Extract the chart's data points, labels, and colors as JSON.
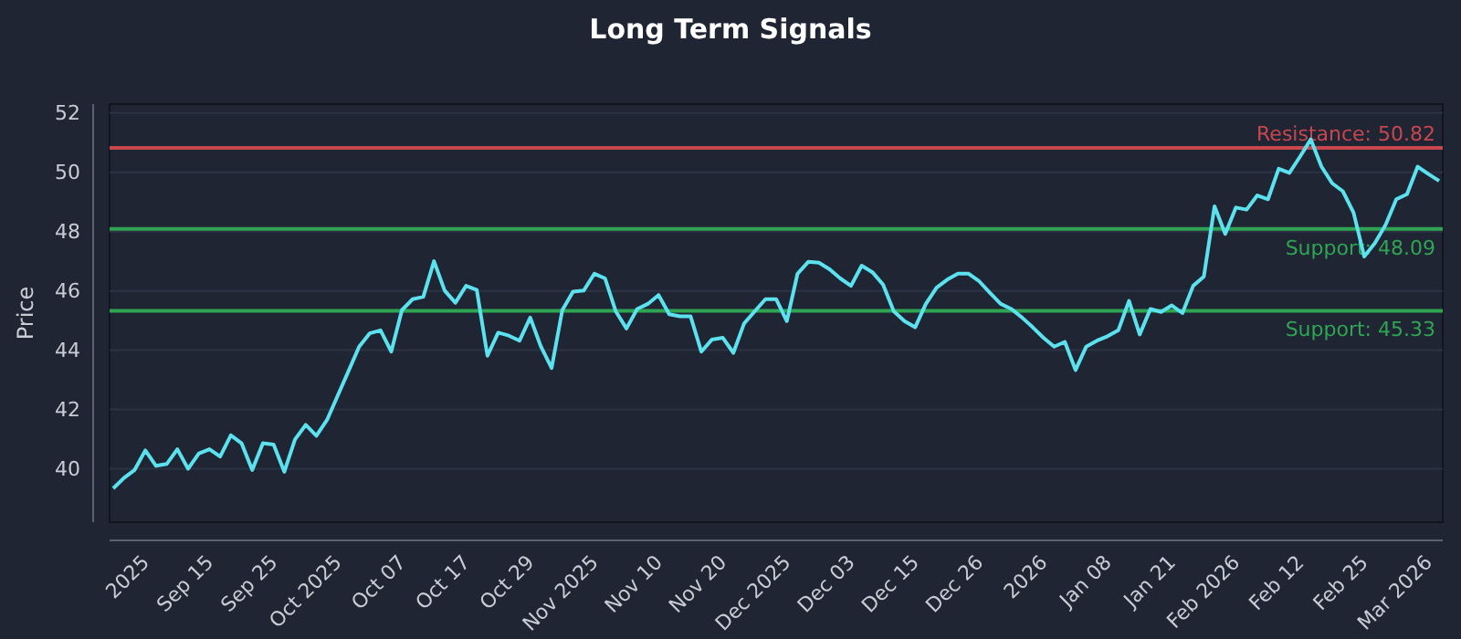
{
  "chart_data": {
    "type": "line",
    "title": "Long Term Signals",
    "ylabel": "Price",
    "categories": [
      null,
      null,
      null,
      "2025",
      null,
      null,
      null,
      null,
      null,
      "Sep 15",
      null,
      null,
      null,
      null,
      null,
      "Sep 25",
      null,
      null,
      null,
      null,
      null,
      "Oct 2025",
      null,
      null,
      null,
      null,
      null,
      "Oct 07",
      null,
      null,
      null,
      null,
      null,
      "Oct 17",
      null,
      null,
      null,
      null,
      null,
      "Oct 29",
      null,
      null,
      null,
      null,
      null,
      "Nov 2025",
      null,
      null,
      null,
      null,
      null,
      "Nov 10",
      null,
      null,
      null,
      null,
      null,
      "Nov 20",
      null,
      null,
      null,
      null,
      null,
      "Dec 2025",
      null,
      null,
      null,
      null,
      null,
      "Dec 03",
      null,
      null,
      null,
      null,
      null,
      "Dec 15",
      null,
      null,
      null,
      null,
      null,
      "Dec 26",
      null,
      null,
      null,
      null,
      null,
      "2026",
      null,
      null,
      null,
      null,
      null,
      "Jan 08",
      null,
      null,
      null,
      null,
      null,
      "Jan 21",
      null,
      null,
      null,
      null,
      null,
      "Feb 2026",
      null,
      null,
      null,
      null,
      null,
      "Feb 12",
      null,
      null,
      null,
      null,
      null,
      "Feb 25",
      null,
      null,
      null,
      null,
      null,
      "Mar 2026",
      null
    ],
    "series": [
      {
        "color": "#5ce1ee",
        "values": [
          39.34,
          39.69,
          39.96,
          40.62,
          40.1,
          40.16,
          40.66,
          40.0,
          40.51,
          40.66,
          40.41,
          41.13,
          40.86,
          39.96,
          40.86,
          40.82,
          39.9,
          40.99,
          41.48,
          41.11,
          41.65,
          42.47,
          43.29,
          44.12,
          44.57,
          44.67,
          43.95,
          45.35,
          45.72,
          45.8,
          47.0,
          46.01,
          45.6,
          46.17,
          46.03,
          43.81,
          44.59,
          44.49,
          44.32,
          45.1,
          44.12,
          43.4,
          45.35,
          45.97,
          46.01,
          46.58,
          46.42,
          45.31,
          44.73,
          45.39,
          45.56,
          45.86,
          45.21,
          45.14,
          45.14,
          43.95,
          44.36,
          44.42,
          43.91,
          44.9,
          45.31,
          45.72,
          45.72,
          44.98,
          46.58,
          46.98,
          46.95,
          46.73,
          46.42,
          46.17,
          46.85,
          46.63,
          46.21,
          45.31,
          44.98,
          44.77,
          45.56,
          46.11,
          46.38,
          46.58,
          46.58,
          46.32,
          45.93,
          45.56,
          45.39,
          45.1,
          44.77,
          44.42,
          44.12,
          44.28,
          43.33,
          44.12,
          44.32,
          44.47,
          44.67,
          45.66,
          44.53,
          45.39,
          45.29,
          45.51,
          45.25,
          46.17,
          46.48,
          48.85,
          47.92,
          48.81,
          48.74,
          49.22,
          49.09,
          50.12,
          49.98,
          50.53,
          51.11,
          50.19,
          49.63,
          49.36,
          48.64,
          47.16,
          47.61,
          48.23,
          49.09,
          49.26,
          50.19,
          49.94,
          49.71
        ]
      }
    ],
    "ylim": [
      38.2,
      52.3
    ],
    "yticks": [
      40,
      42,
      44,
      46,
      48,
      50,
      52
    ],
    "grid": "y",
    "ref_lines": [
      {
        "axis": "y",
        "value": 50.82,
        "label": "Resistance: 50.82",
        "color": "#c8474f"
      },
      {
        "axis": "y",
        "value": 48.09,
        "label": "Support: 48.09",
        "color": "#2fa553"
      },
      {
        "axis": "y",
        "value": 45.33,
        "label": "Support: 45.33",
        "color": "#2fa553"
      }
    ]
  }
}
